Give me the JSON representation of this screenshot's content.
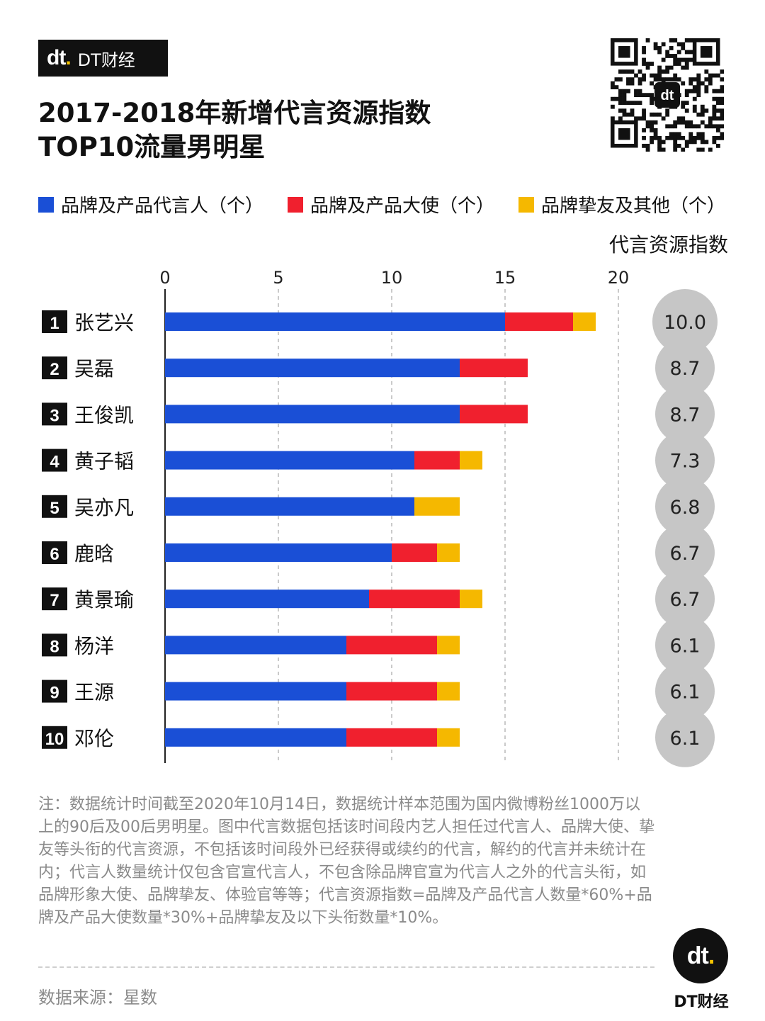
{
  "brand": {
    "logo_text": "dt.",
    "name": "DT财经"
  },
  "title": {
    "line1": "2017-2018年新增代言资源指数",
    "line2": "TOP10流量男明星"
  },
  "legend": [
    {
      "label": "品牌及产品代言人（个）",
      "color": "#1a4fd6"
    },
    {
      "label": "品牌及产品大使（个）",
      "color": "#f0202e"
    },
    {
      "label": "品牌挚友及其他（个）",
      "color": "#f5b800"
    }
  ],
  "index_header": "代言资源指数",
  "chart_data": {
    "type": "bar",
    "orientation": "horizontal",
    "stacked": true,
    "title": "2017-2018年新增代言资源指数 TOP10流量男明星",
    "xlim": [
      0,
      20
    ],
    "xticks": [
      0,
      5,
      10,
      15,
      20
    ],
    "xlabel": "",
    "ylabel": "",
    "categories": [
      "张艺兴",
      "吴磊",
      "王俊凯",
      "黄子韬",
      "吴亦凡",
      "鹿晗",
      "黄景瑜",
      "杨洋",
      "王源",
      "邓伦"
    ],
    "ranks": [
      "1",
      "2",
      "3",
      "4",
      "5",
      "6",
      "7",
      "8",
      "9",
      "10"
    ],
    "series": [
      {
        "name": "品牌及产品代言人（个）",
        "color": "#1a4fd6",
        "values": [
          15,
          13,
          13,
          11,
          11,
          10,
          9,
          8,
          8,
          8
        ]
      },
      {
        "name": "品牌及产品大使（个）",
        "color": "#f0202e",
        "values": [
          3,
          3,
          3,
          2,
          0,
          2,
          4,
          4,
          4,
          4
        ]
      },
      {
        "name": "品牌挚友及其他（个）",
        "color": "#f5b800",
        "values": [
          1,
          0,
          0,
          1,
          2,
          1,
          1,
          1,
          1,
          1
        ]
      }
    ],
    "index_values": [
      "10.0",
      "8.7",
      "8.7",
      "7.3",
      "6.8",
      "6.7",
      "6.7",
      "6.1",
      "6.1",
      "6.1"
    ],
    "grid": "vertical dashed"
  },
  "note": "注：数据统计时间截至2020年10月14日，数据统计样本范围为国内微博粉丝1000万以上的90后及00后男明星。图中代言数据包括该时间段内艺人担任过代言人、品牌大使、挚友等头衔的代言资源，不包括该时间段外已经获得或续约的代言，解约的代言并未统计在内；代言人数量统计仅包含官宣代言人，不包含除品牌官宣为代言人之外的代言头衔，如品牌形象大使、品牌挚友、体验官等等；代言资源指数=品牌及产品代言人数量*60%+品牌及产品大使数量*30%+品牌挚友及以下头衔数量*10%。",
  "source": "数据来源：星数",
  "footer": {
    "logo_text": "dt.",
    "brand": "DT财经"
  }
}
